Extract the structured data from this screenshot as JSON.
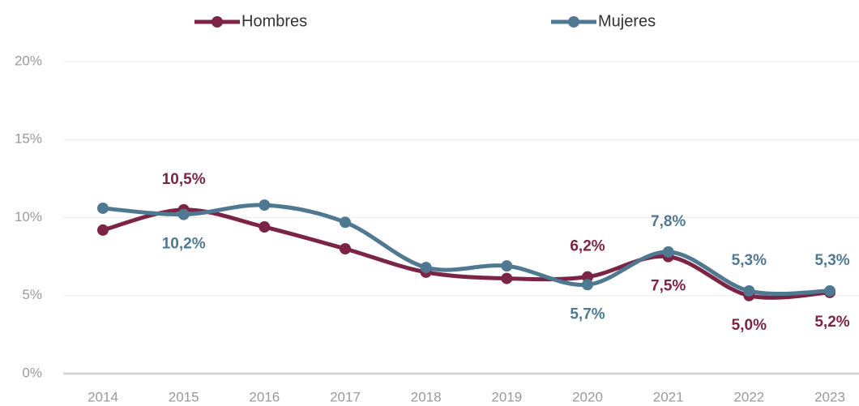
{
  "chart_data": {
    "type": "line",
    "categories": [
      "2014",
      "2015",
      "2016",
      "2017",
      "2018",
      "2019",
      "2020",
      "2021",
      "2022",
      "2023"
    ],
    "series": [
      {
        "name": "Hombres",
        "color": "#7b2446",
        "values": [
          9.2,
          10.5,
          9.4,
          8.0,
          6.5,
          6.1,
          6.2,
          7.5,
          5.0,
          5.2
        ],
        "value_labels": [
          null,
          "10,5%",
          null,
          null,
          null,
          null,
          "6,2%",
          "7,5%",
          "5,0%",
          "5,2%"
        ]
      },
      {
        "name": "Mujeres",
        "color": "#4f7891",
        "values": [
          10.6,
          10.2,
          10.8,
          9.7,
          6.8,
          6.9,
          5.7,
          7.8,
          5.3,
          5.3
        ],
        "value_labels": [
          null,
          "10,2%",
          null,
          null,
          null,
          null,
          "5,7%",
          "7,8%",
          "5,3%",
          "5,3%"
        ]
      }
    ],
    "ylim": [
      0,
      20
    ],
    "yticks": [
      {
        "value": 0,
        "label": "0%"
      },
      {
        "value": 5,
        "label": "5%"
      },
      {
        "value": 10,
        "label": "10%"
      },
      {
        "value": 15,
        "label": "15%"
      },
      {
        "value": 20,
        "label": "20%"
      }
    ],
    "grid": true
  }
}
